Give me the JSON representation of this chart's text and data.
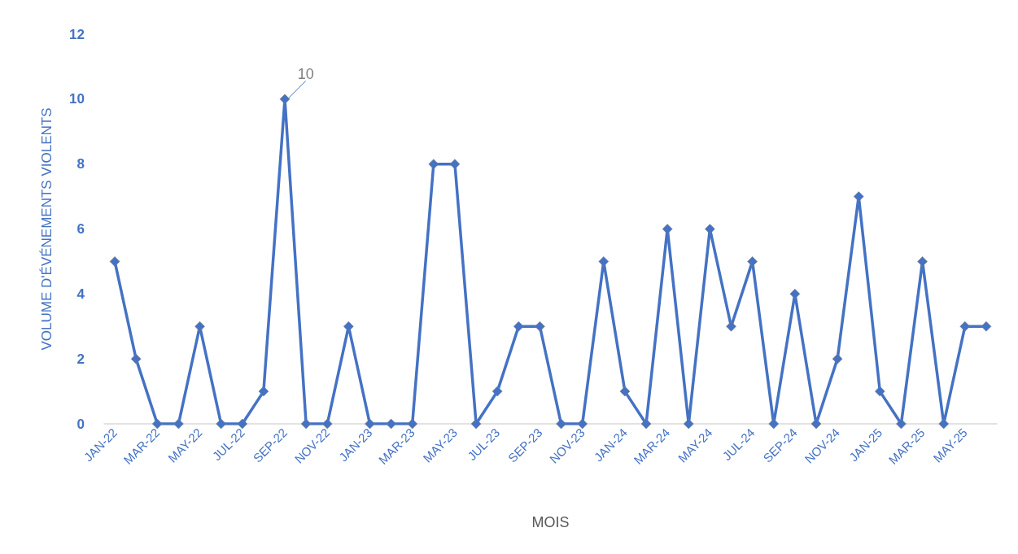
{
  "chart_data": {
    "type": "line",
    "xlabel": "MOIS",
    "ylabel": "VOLUME D'ÉVÉNEMENTS VIOLENTS",
    "categories": [
      "JAN-22",
      null,
      "MAR-22",
      null,
      "MAY-22",
      null,
      "JUL-22",
      null,
      "SEP-22",
      null,
      "NOV-22",
      null,
      "JAN-23",
      null,
      "MAR-23",
      null,
      "MAY-23",
      null,
      "JUL-23",
      null,
      "SEP-23",
      null,
      "NOV-23",
      null,
      "JAN-24",
      null,
      "MAR-24",
      null,
      "MAY-24",
      null,
      "JUL-24",
      null,
      "SEP-24",
      null,
      "NOV-24",
      null,
      "JAN-25",
      null,
      "MAR-25",
      null,
      "MAY-25",
      null
    ],
    "series": [
      {
        "color": "#4472c4",
        "values": [
          5,
          2,
          0,
          0,
          3,
          0,
          0,
          1,
          10,
          0,
          0,
          3,
          0,
          0,
          0,
          8,
          8,
          0,
          1,
          3,
          3,
          0,
          0,
          5,
          1,
          0,
          6,
          0,
          6,
          3,
          5,
          0,
          4,
          0,
          2,
          7,
          1,
          0,
          5,
          0,
          3,
          3
        ],
        "value_labels": [
          null,
          null,
          null,
          null,
          null,
          null,
          null,
          null,
          "10",
          null,
          null,
          null,
          null,
          null,
          null,
          null,
          null,
          null,
          null,
          null,
          null,
          null,
          null,
          null,
          null,
          null,
          null,
          null,
          null,
          null,
          null,
          null,
          null,
          null,
          null,
          null,
          null,
          null,
          null,
          null,
          null,
          null
        ]
      }
    ],
    "ylim": [
      0,
      12
    ],
    "yticks": [
      0,
      2,
      4,
      6,
      8,
      10,
      12
    ],
    "grid": false,
    "marker": "diamond",
    "line_style": "solid"
  }
}
